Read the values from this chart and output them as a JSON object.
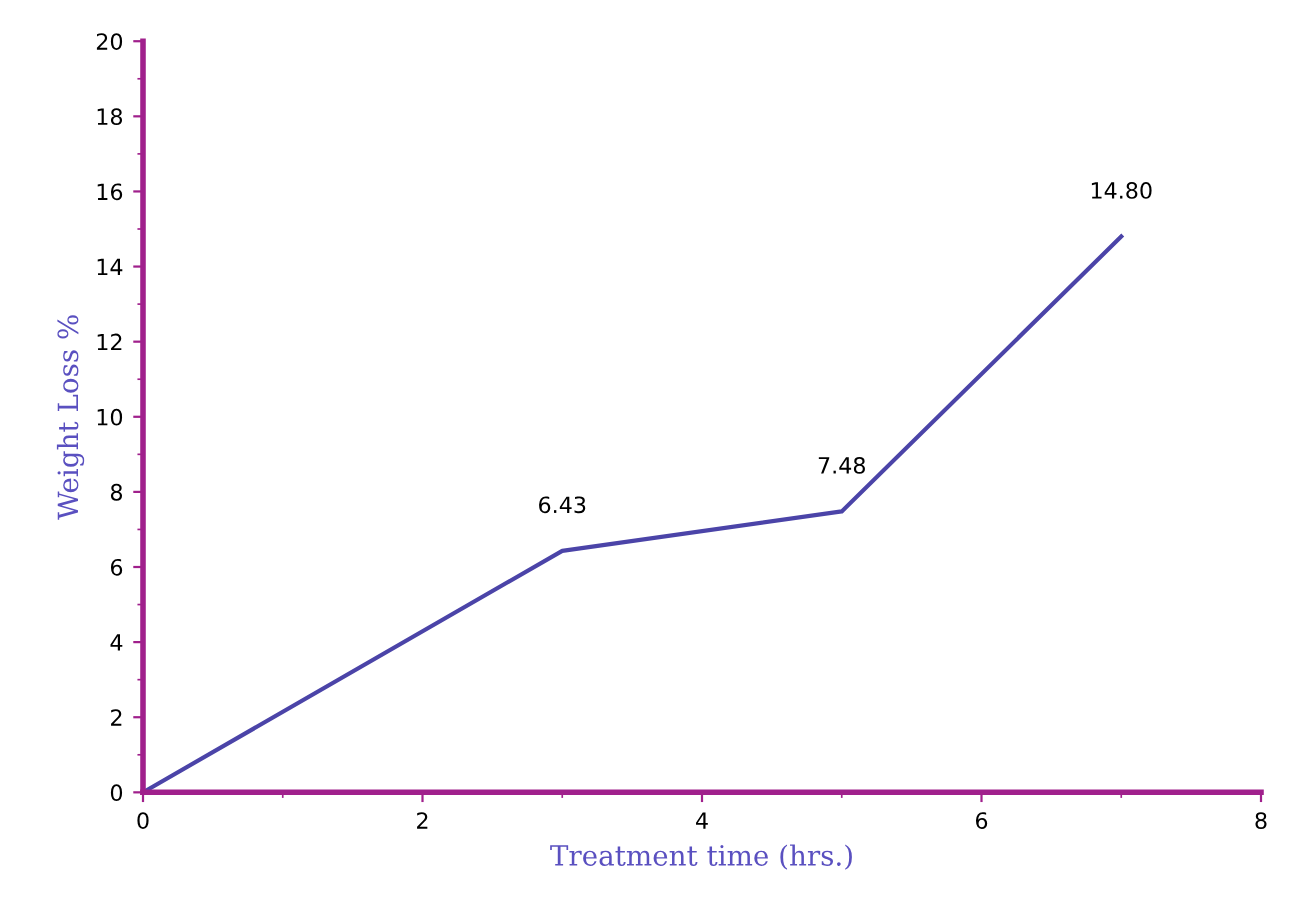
{
  "chart_data": {
    "type": "line",
    "xlabel": "Treatment time (hrs.)",
    "ylabel": "Weight Loss %",
    "x": [
      0,
      3,
      5,
      7
    ],
    "series": [
      {
        "color": "#4b44a8",
        "values": [
          0,
          6.43,
          7.48,
          14.8
        ],
        "value_labels": [
          null,
          "6.43",
          "7.48",
          "14.80"
        ]
      }
    ],
    "xlim": [
      0,
      8
    ],
    "ylim": [
      0,
      20
    ],
    "xticks": [
      0,
      2,
      4,
      6,
      8
    ],
    "yticks": [
      0,
      2,
      4,
      6,
      8,
      10,
      12,
      14,
      16,
      18,
      20
    ],
    "grid": false,
    "marker": "none",
    "line_style": "solid"
  }
}
